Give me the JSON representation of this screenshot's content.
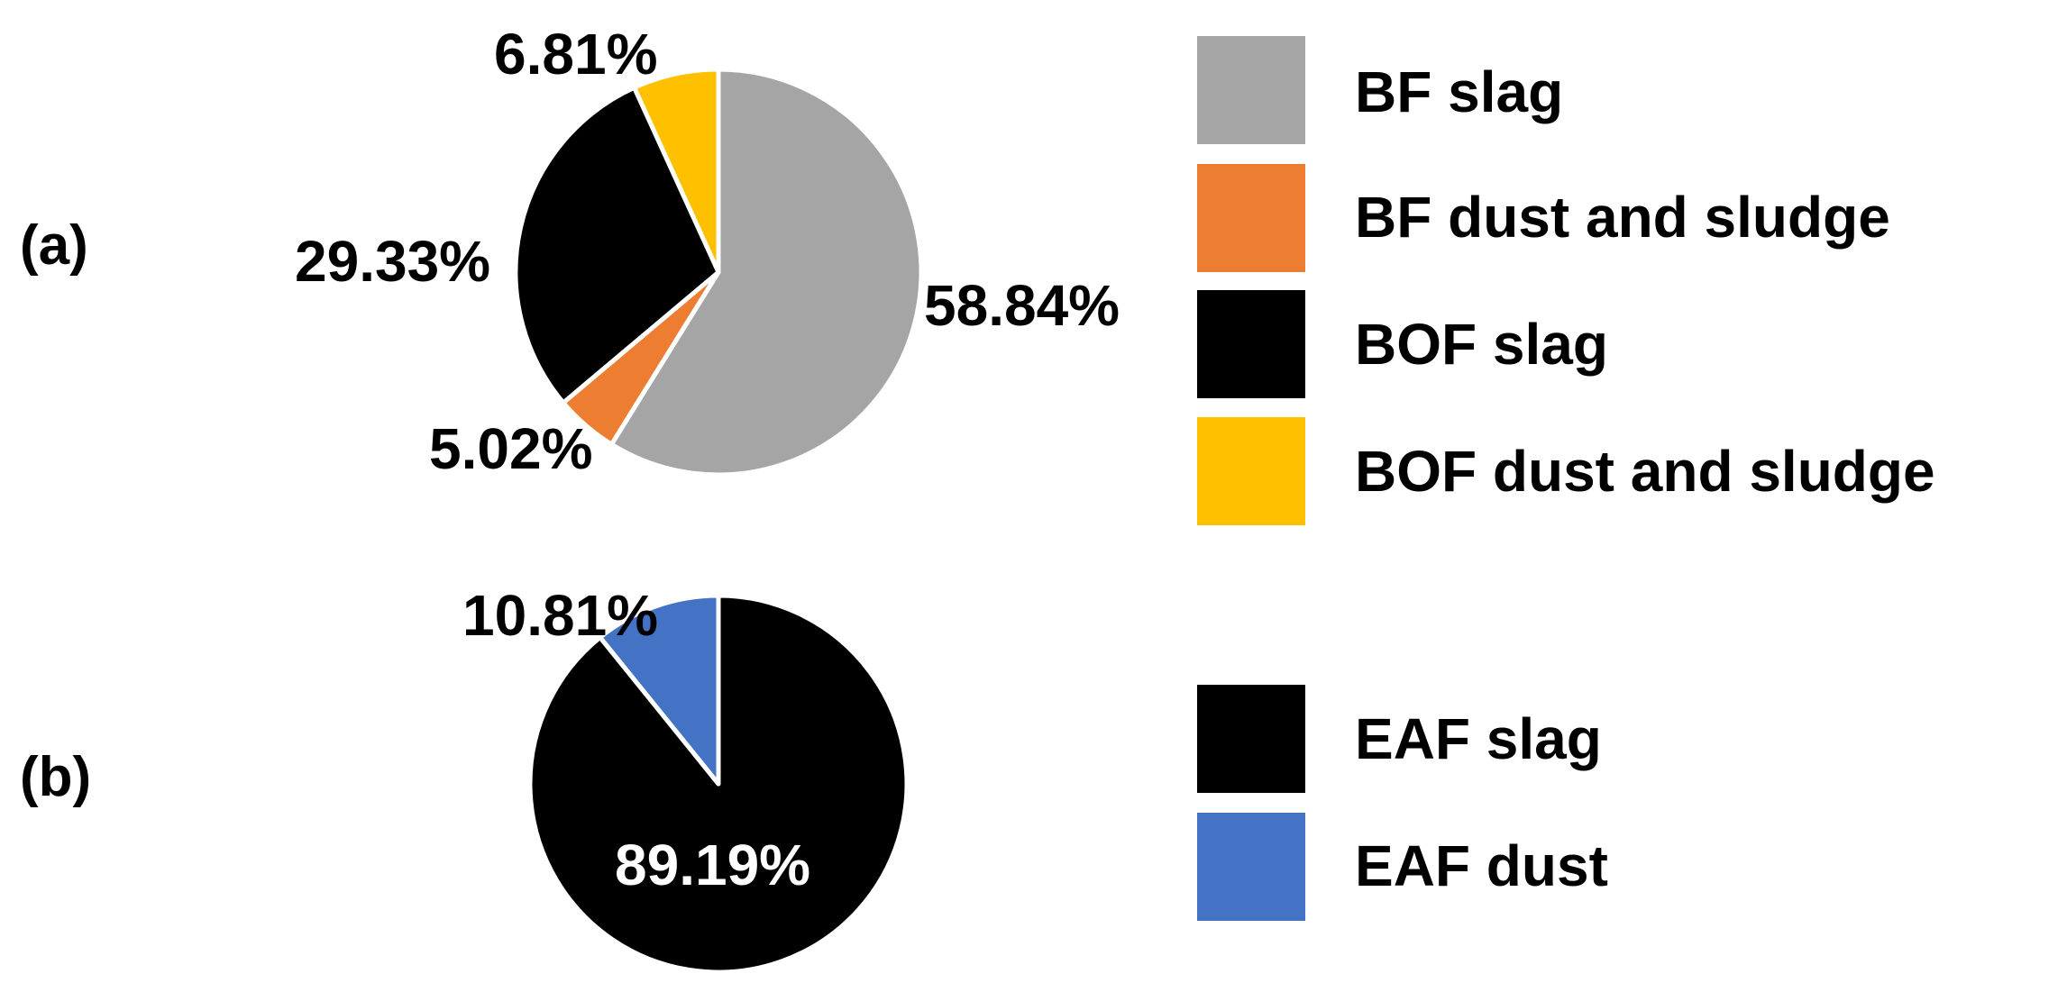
{
  "chart_data": [
    {
      "type": "pie",
      "panel_label": "(a)",
      "start_angle_deg": 0,
      "direction": "clockwise",
      "slices": [
        {
          "name": "BF slag",
          "value": 58.84,
          "label": "58.84%",
          "color": "#A5A5A5",
          "label_color": "#000000"
        },
        {
          "name": "BF dust and sludge",
          "value": 5.02,
          "label": "5.02%",
          "color": "#ED7D31",
          "label_color": "#000000"
        },
        {
          "name": "BOF slag",
          "value": 29.33,
          "label": "29.33%",
          "color": "#000000",
          "label_color": "#000000"
        },
        {
          "name": "BOF dust and sludge",
          "value": 6.81,
          "label": "6.81%",
          "color": "#FFC000",
          "label_color": "#000000"
        }
      ],
      "legend": [
        "BF slag",
        "BF dust and sludge",
        "BOF slag",
        "BOF dust and sludge"
      ],
      "legend_placement": "right"
    },
    {
      "type": "pie",
      "panel_label": "(b)",
      "start_angle_deg": 0,
      "direction": "clockwise",
      "slices": [
        {
          "name": "EAF slag",
          "value": 89.19,
          "label": "89.19%",
          "color": "#000000",
          "label_color": "#FFFFFF"
        },
        {
          "name": "EAF dust",
          "value": 10.81,
          "label": "10.81%",
          "color": "#4472C4",
          "label_color": "#000000"
        }
      ],
      "legend": [
        "EAF slag",
        "EAF dust"
      ],
      "legend_placement": "right"
    }
  ]
}
